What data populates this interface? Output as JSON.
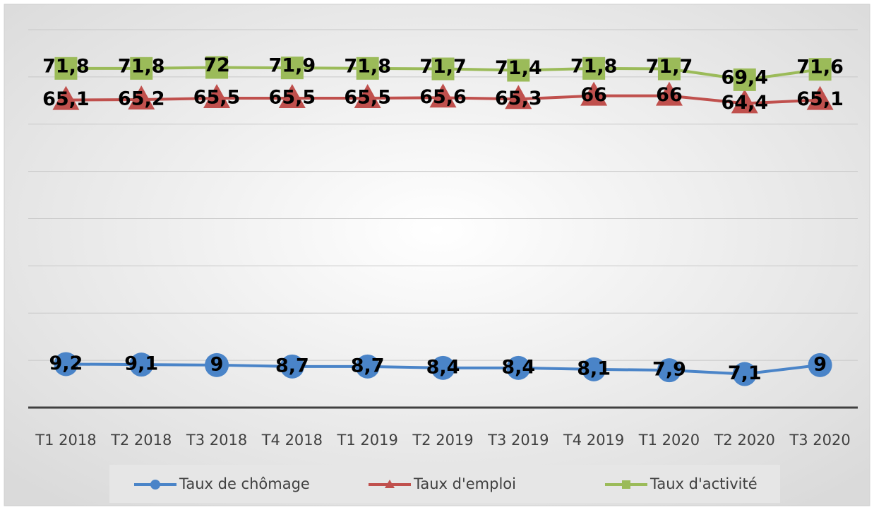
{
  "chart_data": {
    "type": "line",
    "categories": [
      "T1 2018",
      "T2 2018",
      "T3 2018",
      "T4 2018",
      "T1 2019",
      "T2 2019",
      "T3 2019",
      "T4 2019",
      "T1 2020",
      "T2 2020",
      "T3 2020"
    ],
    "series": [
      {
        "name": "Taux de chômage",
        "color": "#4a84c8",
        "marker": "circle",
        "values": [
          9.2,
          9.1,
          9,
          8.7,
          8.7,
          8.4,
          8.4,
          8.1,
          7.9,
          7.1,
          9
        ],
        "value_labels": [
          "9,2",
          "9,1",
          "9",
          "8,7",
          "8,7",
          "8,4",
          "8,4",
          "8,1",
          "7,9",
          "7,1",
          "9"
        ]
      },
      {
        "name": "Taux d'emploi",
        "color": "#c0504d",
        "marker": "triangle",
        "values": [
          65.1,
          65.2,
          65.5,
          65.5,
          65.5,
          65.6,
          65.3,
          66,
          66,
          64.4,
          65.1
        ],
        "value_labels": [
          "65,1",
          "65,2",
          "65,5",
          "65,5",
          "65,5",
          "65,6",
          "65,3",
          "66",
          "66",
          "64,4",
          "65,1"
        ]
      },
      {
        "name": "Taux d'activité",
        "color": "#9bbb59",
        "marker": "square",
        "values": [
          71.8,
          71.8,
          72,
          71.9,
          71.8,
          71.7,
          71.4,
          71.8,
          71.7,
          69.4,
          71.6
        ],
        "value_labels": [
          "71,8",
          "71,8",
          "72",
          "71,9",
          "71,8",
          "71,7",
          "71,4",
          "71,8",
          "71,7",
          "69,4",
          "71,6"
        ]
      }
    ],
    "ylim": [
      0,
      80
    ],
    "yticks": [
      10,
      20,
      30,
      40,
      50,
      60,
      70,
      80
    ],
    "grid": true,
    "legend": "bottom"
  }
}
